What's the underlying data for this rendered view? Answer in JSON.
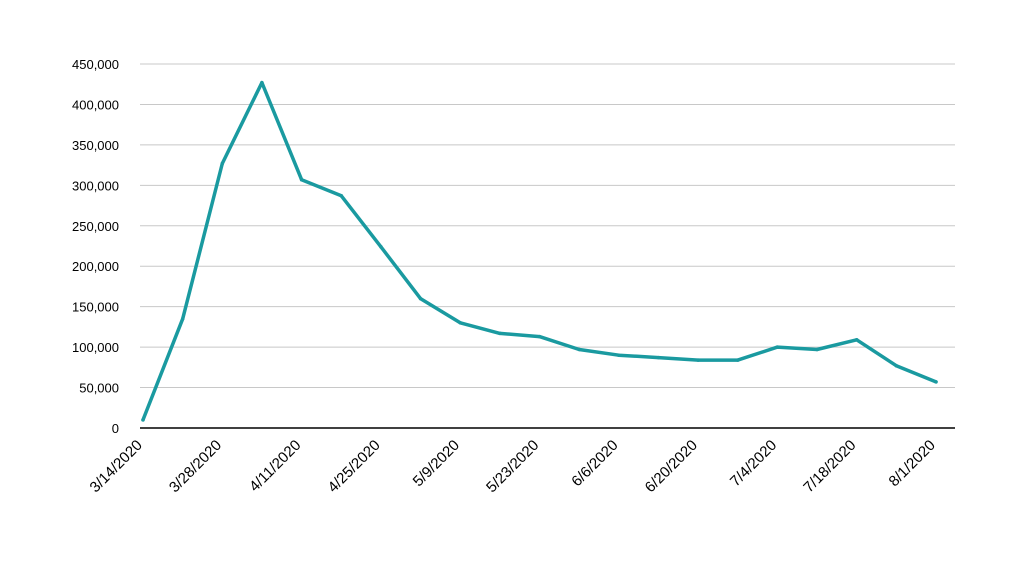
{
  "chart_data": {
    "type": "line",
    "title": "",
    "xlabel": "",
    "ylabel": "",
    "ylim": [
      0,
      450000
    ],
    "y_ticks": [
      0,
      50000,
      100000,
      150000,
      200000,
      250000,
      300000,
      350000,
      400000,
      450000
    ],
    "y_tick_labels": [
      "0",
      "50,000",
      "100,000",
      "150,000",
      "200,000",
      "250,000",
      "300,000",
      "350,000",
      "400,000",
      "450,000"
    ],
    "x_tick_labels": [
      "3/14/2020",
      "3/28/2020",
      "4/11/2020",
      "4/25/2020",
      "5/9/2020",
      "5/23/2020",
      "6/6/2020",
      "6/20/2020",
      "7/4/2020",
      "7/18/2020",
      "8/1/2020"
    ],
    "grid": true,
    "legend": "none",
    "colors": {
      "line": "#1a9aa0",
      "grid": "#c8c8c8",
      "axis": "#000000"
    },
    "x": [
      "3/14/2020",
      "3/21/2020",
      "3/28/2020",
      "4/4/2020",
      "4/11/2020",
      "4/18/2020",
      "4/25/2020",
      "5/2/2020",
      "5/9/2020",
      "5/16/2020",
      "5/23/2020",
      "5/30/2020",
      "6/6/2020",
      "6/13/2020",
      "6/20/2020",
      "6/27/2020",
      "7/4/2020",
      "7/11/2020",
      "7/18/2020",
      "7/25/2020",
      "8/1/2020"
    ],
    "series": [
      {
        "values": [
          10000,
          135000,
          327000,
          427000,
          307000,
          287000,
          224000,
          160000,
          130000,
          117000,
          113000,
          97000,
          90000,
          87000,
          84000,
          84000,
          100000,
          97000,
          109000,
          77000,
          57000
        ]
      }
    ]
  }
}
